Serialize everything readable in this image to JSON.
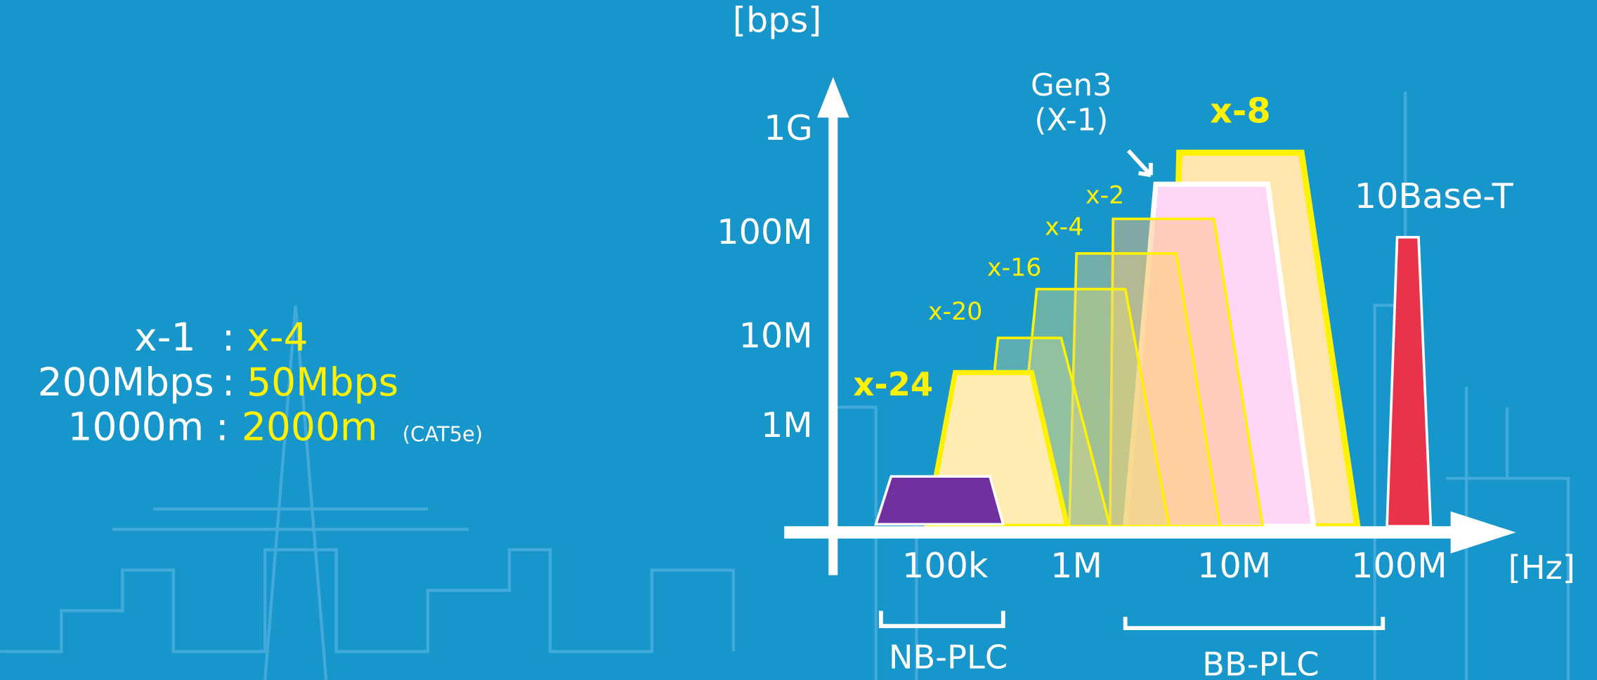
{
  "y_axis": {
    "unit": "[bps]",
    "labels": [
      "1G",
      "100M",
      "10M",
      "1M"
    ]
  },
  "x_axis": {
    "unit": "[Hz]",
    "labels": [
      "100k",
      "1M",
      "10M",
      "100M"
    ]
  },
  "bands": [
    "x-24",
    "x-20",
    "x-16",
    "x-4",
    "x-2",
    "x-8"
  ],
  "gen3": {
    "line1": "Gen3",
    "line2": "(X-1)"
  },
  "ethernet": "10Base-T",
  "ranges": [
    "NB-PLC",
    "BB-PLC"
  ],
  "comparison": {
    "rows": [
      [
        "x-1",
        ":",
        "x-4"
      ],
      [
        "200Mbps",
        ":",
        "50Mbps"
      ],
      [
        "1000m",
        ":",
        "2000m"
      ]
    ],
    "note": "(CAT5e)"
  }
}
